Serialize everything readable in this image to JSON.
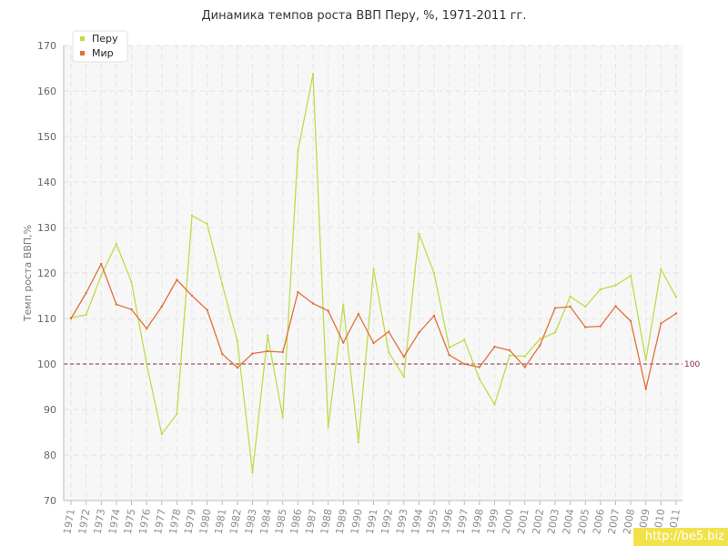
{
  "chart_data": {
    "type": "line",
    "title": "Динамика темпов роста ВВП Перу, %, 1971-2011 гг.",
    "xlabel": "",
    "ylabel": "Темп роста ВВП,%",
    "ylim": [
      70,
      170
    ],
    "yticks": [
      70,
      80,
      90,
      100,
      110,
      120,
      130,
      140,
      150,
      160,
      170
    ],
    "categories": [
      "1971",
      "1972",
      "1973",
      "1974",
      "1975",
      "1976",
      "1977",
      "1978",
      "1979",
      "1980",
      "1981",
      "1982",
      "1983",
      "1984",
      "1985",
      "1986",
      "1987",
      "1988",
      "1989",
      "1990",
      "1991",
      "1992",
      "1993",
      "1994",
      "1995",
      "1996",
      "1997",
      "1998",
      "1999",
      "2000",
      "2001",
      "2002",
      "2003",
      "2004",
      "2005",
      "2006",
      "2007",
      "2008",
      "2009",
      "2010",
      "2011"
    ],
    "series": [
      {
        "name": "Перу",
        "color": "#bfdc4a",
        "values": [
          110.2,
          110.8,
          119.5,
          126.4,
          118.0,
          100.0,
          84.6,
          89.0,
          132.6,
          130.8,
          117.5,
          105.0,
          76.2,
          106.3,
          88.3,
          146.8,
          163.7,
          86.1,
          113.0,
          82.8,
          120.8,
          102.6,
          97.2,
          128.6,
          120.0,
          103.6,
          105.3,
          96.7,
          91.1,
          101.9,
          101.7,
          105.5,
          106.9,
          114.8,
          112.6,
          116.4,
          117.3,
          119.4,
          100.9,
          120.8,
          114.7
        ]
      },
      {
        "name": "Мир",
        "color": "#e0703a",
        "values": [
          110.0,
          115.6,
          122.0,
          113.1,
          112.0,
          107.8,
          112.6,
          118.5,
          115.0,
          111.9,
          102.2,
          99.2,
          102.3,
          102.8,
          102.6,
          115.8,
          113.3,
          111.7,
          104.7,
          111.0,
          104.6,
          107.1,
          101.6,
          106.9,
          110.6,
          102.0,
          100.0,
          99.3,
          103.8,
          103.0,
          99.3,
          104.1,
          112.3,
          112.6,
          108.1,
          108.3,
          112.7,
          109.4,
          94.5,
          108.9,
          111.1
        ]
      }
    ],
    "reference_line": {
      "value": 100,
      "label": "100",
      "color": "#8b2a3b",
      "style": "dashed"
    },
    "legend": {
      "position": "top-left"
    },
    "grid": true
  },
  "watermark": "http://be5.biz"
}
